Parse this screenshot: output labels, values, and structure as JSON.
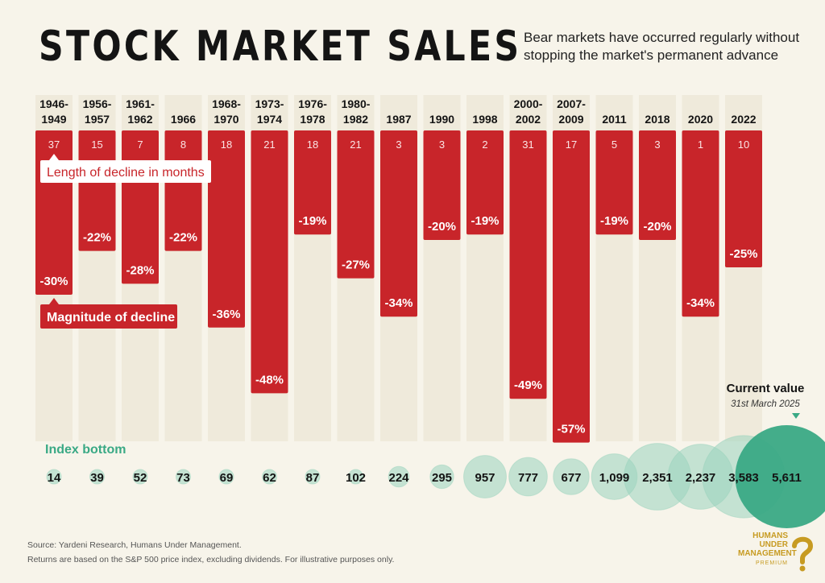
{
  "title": "STOCK MARKET SALES",
  "subtitle": "Bear markets have occurred regularly without stopping the market's permanent advance",
  "legend": {
    "length_label": "Length of decline in months",
    "magnitude_label": "Magnitude of decline",
    "index_label": "Index bottom",
    "current_label": "Current value",
    "current_date": "31st March 2025"
  },
  "colors": {
    "bar": "#c8252a",
    "bar_dark": "#a91d22",
    "bubble": "#9bd3bd",
    "bubble_current": "#3aa985",
    "teal_text": "#3aa985",
    "bg": "#f7f4ea"
  },
  "chart_data": {
    "type": "bar",
    "categories": [
      [
        "1946-",
        "1949"
      ],
      [
        "1956-",
        "1957"
      ],
      [
        "1961-",
        "1962"
      ],
      [
        "1966"
      ],
      [
        "1968-",
        "1970"
      ],
      [
        "1973-",
        "1974"
      ],
      [
        "1976-",
        "1978"
      ],
      [
        "1980-",
        "1982"
      ],
      [
        "1987"
      ],
      [
        "1990"
      ],
      [
        "1998"
      ],
      [
        "2000-",
        "2002"
      ],
      [
        "2007-",
        "2009"
      ],
      [
        "2011"
      ],
      [
        "2018"
      ],
      [
        "2020"
      ],
      [
        "2022"
      ]
    ],
    "series": [
      {
        "name": "Length of decline in months",
        "values": [
          37,
          15,
          7,
          8,
          18,
          21,
          18,
          21,
          3,
          3,
          2,
          31,
          17,
          5,
          3,
          1,
          10
        ]
      },
      {
        "name": "Magnitude of decline",
        "values": [
          -30,
          -22,
          -28,
          -22,
          -36,
          -48,
          -19,
          -27,
          -34,
          -20,
          -19,
          -49,
          -57,
          -19,
          -20,
          -34,
          -25
        ]
      },
      {
        "name": "Index bottom",
        "values": [
          14,
          39,
          52,
          73,
          69,
          62,
          87,
          102,
          224,
          295,
          957,
          777,
          677,
          1099,
          2351,
          2237,
          3583
        ]
      }
    ],
    "magnitude_labels": [
      "-30%",
      "-22%",
      "-28%",
      "-22%",
      "-36%",
      "-48%",
      "-19%",
      "-27%",
      "-34%",
      "-20%",
      "-19%",
      "-49%",
      "-57%",
      "-19%",
      "-20%",
      "-34%",
      "-25%"
    ],
    "index_labels": [
      "14",
      "39",
      "52",
      "73",
      "69",
      "62",
      "87",
      "102",
      "224",
      "295",
      "957",
      "777",
      "677",
      "1,099",
      "2,351",
      "2,237",
      "3,583"
    ],
    "current_value": 5611,
    "current_value_label": "5,611"
  },
  "footer": {
    "source": "Source: Yardeni Research, Humans Under Management.",
    "note": "Returns are based on the S&P 500 price index, excluding dividends. For illustrative purposes only."
  },
  "logo": {
    "line1": "HUMANS",
    "line2": "UNDER",
    "line3": "MANAGEMENT",
    "premium": "PREMIUM"
  }
}
